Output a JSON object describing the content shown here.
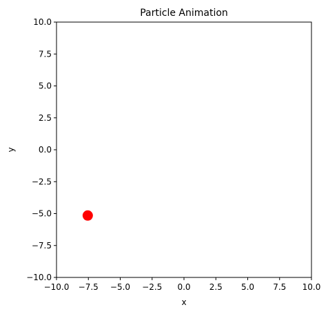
{
  "chart_data": {
    "type": "scatter",
    "title": "Particle Animation",
    "xlabel": "x",
    "ylabel": "y",
    "xlim": [
      -10,
      10
    ],
    "ylim": [
      -10,
      10
    ],
    "xticks": [
      -10,
      -7.5,
      -5,
      -2.5,
      0,
      2.5,
      5,
      7.5,
      10
    ],
    "yticks": [
      -10,
      -7.5,
      -5,
      -2.5,
      0,
      2.5,
      5,
      7.5,
      10
    ],
    "xtick_labels": [
      "−10.0",
      "−7.5",
      "−5.0",
      "−2.5",
      "0.0",
      "2.5",
      "5.0",
      "7.5",
      "10.0"
    ],
    "ytick_labels": [
      "−10.0",
      "−7.5",
      "−5.0",
      "−2.5",
      "0.0",
      "2.5",
      "5.0",
      "7.5",
      "10.0"
    ],
    "grid": false,
    "legend": "none",
    "series": [
      {
        "color": "#ff0000",
        "marker": "circle",
        "points": [
          {
            "x": -7.55,
            "y": -5.15
          }
        ]
      }
    ]
  }
}
